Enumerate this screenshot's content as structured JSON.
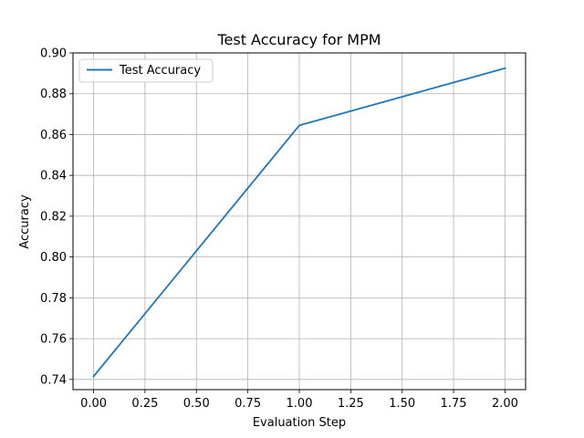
{
  "chart_data": {
    "type": "line",
    "title": "Test Accuracy for MPM",
    "xlabel": "Evaluation Step",
    "ylabel": "Accuracy",
    "xlim": [
      -0.1,
      2.1
    ],
    "ylim": [
      0.735,
      0.9
    ],
    "x_ticks": [
      "0.00",
      "0.25",
      "0.50",
      "0.75",
      "1.00",
      "1.25",
      "1.50",
      "1.75",
      "2.00"
    ],
    "y_ticks": [
      "0.74",
      "0.76",
      "0.78",
      "0.80",
      "0.82",
      "0.84",
      "0.86",
      "0.88",
      "0.90"
    ],
    "grid": true,
    "legend_position": "upper left",
    "series": [
      {
        "name": "Test Accuracy",
        "color": "#1f77b4",
        "x": [
          0,
          1,
          2
        ],
        "y": [
          0.7415,
          0.8645,
          0.8925
        ]
      }
    ]
  }
}
